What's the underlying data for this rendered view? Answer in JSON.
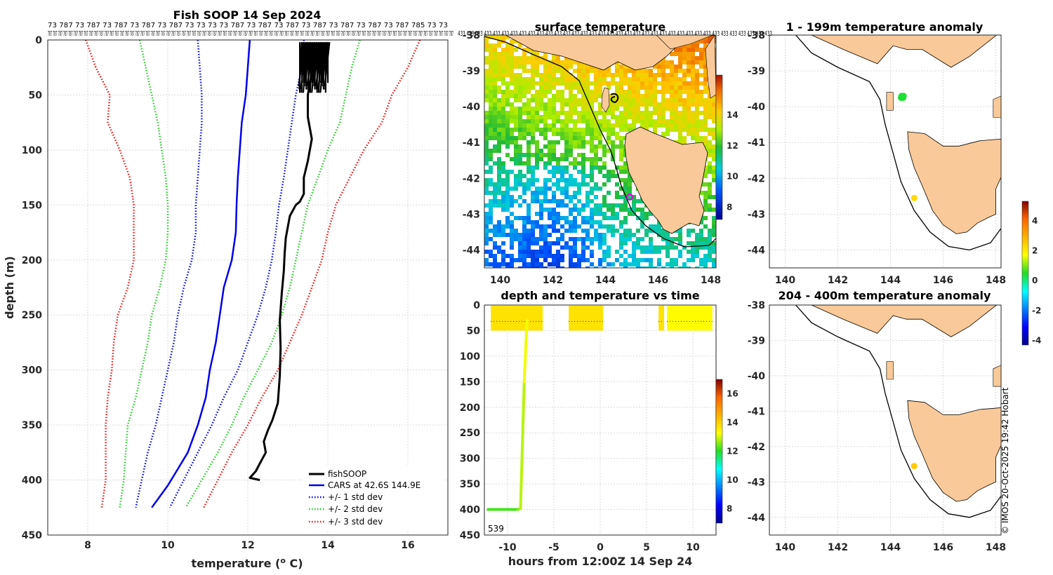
{
  "colors": {
    "land": "#f9c999",
    "grid": "#d9d9d9",
    "fishsoop": "#000000",
    "cars": "#0000ee",
    "std1": "#0000ee",
    "std2": "#22cc22",
    "std3": "#ee1111",
    "marker_magenta": "#e000e0",
    "anomaly_point": "#c8e600",
    "anomaly_cluster": "#22cc22"
  },
  "profile": {
    "chart_data": {
      "type": "line",
      "title": "Fish SOOP 14 Sep 2024",
      "xlabel": "temperature (o C)",
      "ylabel": "depth (m)",
      "xlim": [
        7,
        17
      ],
      "ylim": [
        0,
        450
      ],
      "y_reversed": true,
      "xticks": [
        8,
        10,
        12,
        14,
        16
      ],
      "yticks": [
        0,
        50,
        100,
        150,
        200,
        250,
        300,
        350,
        400,
        450
      ],
      "series": [
        {
          "name": "fishSOOP",
          "style": "solid-black",
          "temp": [
            13.6,
            13.5,
            13.5,
            13.6,
            13.5,
            13.4,
            13.4,
            13.3,
            13.2,
            13.05,
            13.0,
            12.95,
            12.92,
            12.9,
            12.85,
            12.8,
            12.82,
            12.8,
            12.75,
            12.62,
            12.5,
            12.4,
            12.45,
            12.3,
            12.2,
            12.05,
            12.3
          ],
          "depth": [
            30,
            50,
            70,
            90,
            110,
            125,
            140,
            147,
            150,
            160,
            170,
            180,
            195,
            210,
            230,
            255,
            280,
            305,
            330,
            345,
            355,
            365,
            375,
            385,
            392,
            398,
            400
          ]
        },
        {
          "name": "CARS at 42.6S 144.9E",
          "style": "solid-blue",
          "temp": [
            12.05,
            12.0,
            11.95,
            11.85,
            11.8,
            11.75,
            11.72,
            11.7,
            11.6,
            11.4,
            11.3,
            11.2,
            11.05,
            10.95,
            10.75,
            10.5,
            10.25,
            10.0,
            9.8,
            9.6
          ],
          "depth": [
            0,
            25,
            50,
            75,
            100,
            125,
            150,
            175,
            200,
            225,
            250,
            275,
            300,
            325,
            350,
            375,
            390,
            405,
            415,
            425
          ]
        },
        {
          "name": "+/- 1 std dev",
          "style": "dot-blue",
          "lower_temp": [
            10.75,
            10.8,
            10.85,
            10.85,
            10.8,
            10.75,
            10.7,
            10.7,
            10.6,
            10.4,
            10.25,
            10.15,
            10.0,
            9.85,
            9.7,
            9.5,
            9.35,
            9.2
          ],
          "upper_temp": [
            13.4,
            13.35,
            13.2,
            13.1,
            13.0,
            12.9,
            12.78,
            12.7,
            12.6,
            12.45,
            12.25,
            12.0,
            11.75,
            11.4,
            11.1,
            10.75,
            10.4,
            10.05
          ],
          "depth": [
            0,
            25,
            50,
            75,
            100,
            125,
            150,
            175,
            200,
            225,
            250,
            275,
            300,
            325,
            350,
            375,
            400,
            425
          ]
        },
        {
          "name": "+/- 2 std dev",
          "style": "dot-green",
          "lower_temp": [
            9.3,
            9.45,
            9.6,
            9.75,
            9.85,
            9.95,
            10.0,
            10.0,
            9.95,
            9.8,
            9.6,
            9.5,
            9.35,
            9.2,
            9.0,
            8.95,
            8.9,
            8.8
          ],
          "upper_temp": [
            14.8,
            14.6,
            14.45,
            14.3,
            14.0,
            13.75,
            13.5,
            13.35,
            13.2,
            13.05,
            12.85,
            12.6,
            12.25,
            11.9,
            11.6,
            11.25,
            10.85,
            10.45
          ],
          "depth": [
            0,
            25,
            50,
            75,
            100,
            125,
            150,
            175,
            200,
            225,
            250,
            275,
            300,
            325,
            350,
            375,
            400,
            425
          ]
        },
        {
          "name": "+/- 3 std dev",
          "style": "dot-red",
          "lower_temp": [
            7.95,
            8.2,
            8.55,
            8.5,
            8.8,
            9.05,
            9.15,
            9.15,
            9.15,
            9.0,
            8.75,
            8.65,
            8.6,
            8.5,
            8.45,
            8.45,
            8.45,
            8.35
          ],
          "upper_temp": [
            16.3,
            16.0,
            15.6,
            15.35,
            14.9,
            14.55,
            14.2,
            14.0,
            13.85,
            13.6,
            13.35,
            13.05,
            12.75,
            12.35,
            12.0,
            11.6,
            11.25,
            10.9
          ],
          "depth": [
            0,
            25,
            50,
            75,
            100,
            125,
            150,
            175,
            200,
            225,
            250,
            275,
            300,
            325,
            350,
            375,
            400,
            425
          ]
        }
      ],
      "surface_cluster": {
        "temp_range": [
          13.3,
          14.0
        ],
        "depth_range": [
          0,
          48
        ]
      }
    },
    "top_labels_row1": "73 787 73 787 73 787 73 787 73 787 73 73 73 73 787 73 787 73 787 73 787 73 787 73 787 73 787 785 73 73",
    "top_labels_row2": "787 787 787 787 787 787 787 787 787 787 787 787 787 787 787 787 787 787 787 787 787 787 787 787 787 787 787 787 787 787 787 787 787 787 787 787 787 787 787 787 787 787 787 787 787 787 787 787 787 787 787 787 787 787 787 787 787 787 787 787 787 787 787 787 787 787 787 787 787 787 787 787 787 787 787 787 787 787 787",
    "legend": [
      {
        "label": "fishSOOP"
      },
      {
        "label": "CARS at 42.6S 144.9E"
      },
      {
        "label": "+/- 1 std dev"
      },
      {
        "label": "+/- 2 std dev"
      },
      {
        "label": "+/- 3 std dev"
      }
    ]
  },
  "surface_map": {
    "title": "surface temperature",
    "top_labels": "433 433 433 433 433 433 433 433 433 433 433 433 433 433 433 433 433 433 433 433 433 433 433 433 433 433 433 433 433 433 433 433 433 433 433 433",
    "chart_data": {
      "type": "heatmap",
      "xlim": [
        139.4,
        148.2
      ],
      "ylim": [
        -44.5,
        -38
      ],
      "xticks": [
        140,
        142,
        144,
        146,
        148
      ],
      "yticks": [
        -38,
        -39,
        -40,
        -41,
        -42,
        -43,
        -44
      ]
    },
    "colorbar": {
      "min": 7.2,
      "max": 16.6,
      "ticks": [
        8,
        10,
        12,
        14
      ],
      "tick_labels": [
        "8",
        "10",
        "12",
        "14"
      ]
    }
  },
  "depth_time": {
    "title": "depth and temperature vs time",
    "xlabel": "hours from 12:00Z 14 Sep 24",
    "corner_label": "539",
    "chart_data": {
      "type": "scatter",
      "xlim": [
        -12.5,
        12.5
      ],
      "ylim": [
        0,
        450
      ],
      "y_reversed": true,
      "xticks": [
        -10,
        -5,
        0,
        5,
        10
      ],
      "xtick_labels": [
        "-10",
        "-5",
        "0",
        "5",
        "10"
      ],
      "yticks": [
        0,
        50,
        100,
        150,
        200,
        250,
        300,
        350,
        400,
        450
      ],
      "surface_segments": [
        [
          -11.8,
          -6.2
        ],
        [
          -3.4,
          0.3
        ],
        [
          6.3,
          6.9
        ],
        [
          7.2,
          12.1
        ]
      ],
      "surface_depth_range": [
        0,
        50
      ],
      "descent": {
        "time": [
          -12.1,
          -8.9,
          -8.6,
          -8.2,
          -7.9
        ],
        "depth": [
          400,
          400,
          398,
          150,
          30
        ]
      }
    },
    "colorbar": {
      "min": 7.0,
      "max": 17.0,
      "ticks": [
        8,
        10,
        12,
        14,
        16
      ],
      "tick_labels": [
        "8",
        "10",
        "12",
        "14",
        "16"
      ]
    }
  },
  "anomaly_1": {
    "title": "1 - 199m temperature anomaly",
    "chart_data": {
      "type": "scatter",
      "xlim": [
        139.4,
        148.2
      ],
      "ylim": [
        -44.5,
        -38
      ],
      "xticks": [
        140,
        142,
        144,
        146,
        148
      ],
      "yticks": [
        -38,
        -39,
        -40,
        -41,
        -42,
        -43,
        -44
      ],
      "points": [
        {
          "lon": 144.4,
          "lat": -39.75,
          "anomaly": 0.4
        },
        {
          "lon": 144.9,
          "lat": -42.55,
          "anomaly": 2.3
        }
      ]
    }
  },
  "anomaly_2": {
    "title": "204 - 400m temperature anomaly",
    "chart_data": {
      "type": "scatter",
      "xlim": [
        139.4,
        148.2
      ],
      "ylim": [
        -44.5,
        -38
      ],
      "xticks": [
        140,
        142,
        144,
        146,
        148
      ],
      "yticks": [
        -38,
        -39,
        -40,
        -41,
        -42,
        -43,
        -44
      ],
      "points": [
        {
          "lon": 144.9,
          "lat": -42.55,
          "anomaly": 2.5
        }
      ]
    }
  },
  "anomaly_colorbar": {
    "min": -4.3,
    "max": 5.3,
    "ticks": [
      -4,
      -2,
      0,
      2,
      4
    ],
    "tick_labels": [
      "-4",
      "-2",
      "0",
      "2",
      "4"
    ]
  },
  "credit": "© IMOS 20-Oct-2025 19:42 Hobart"
}
